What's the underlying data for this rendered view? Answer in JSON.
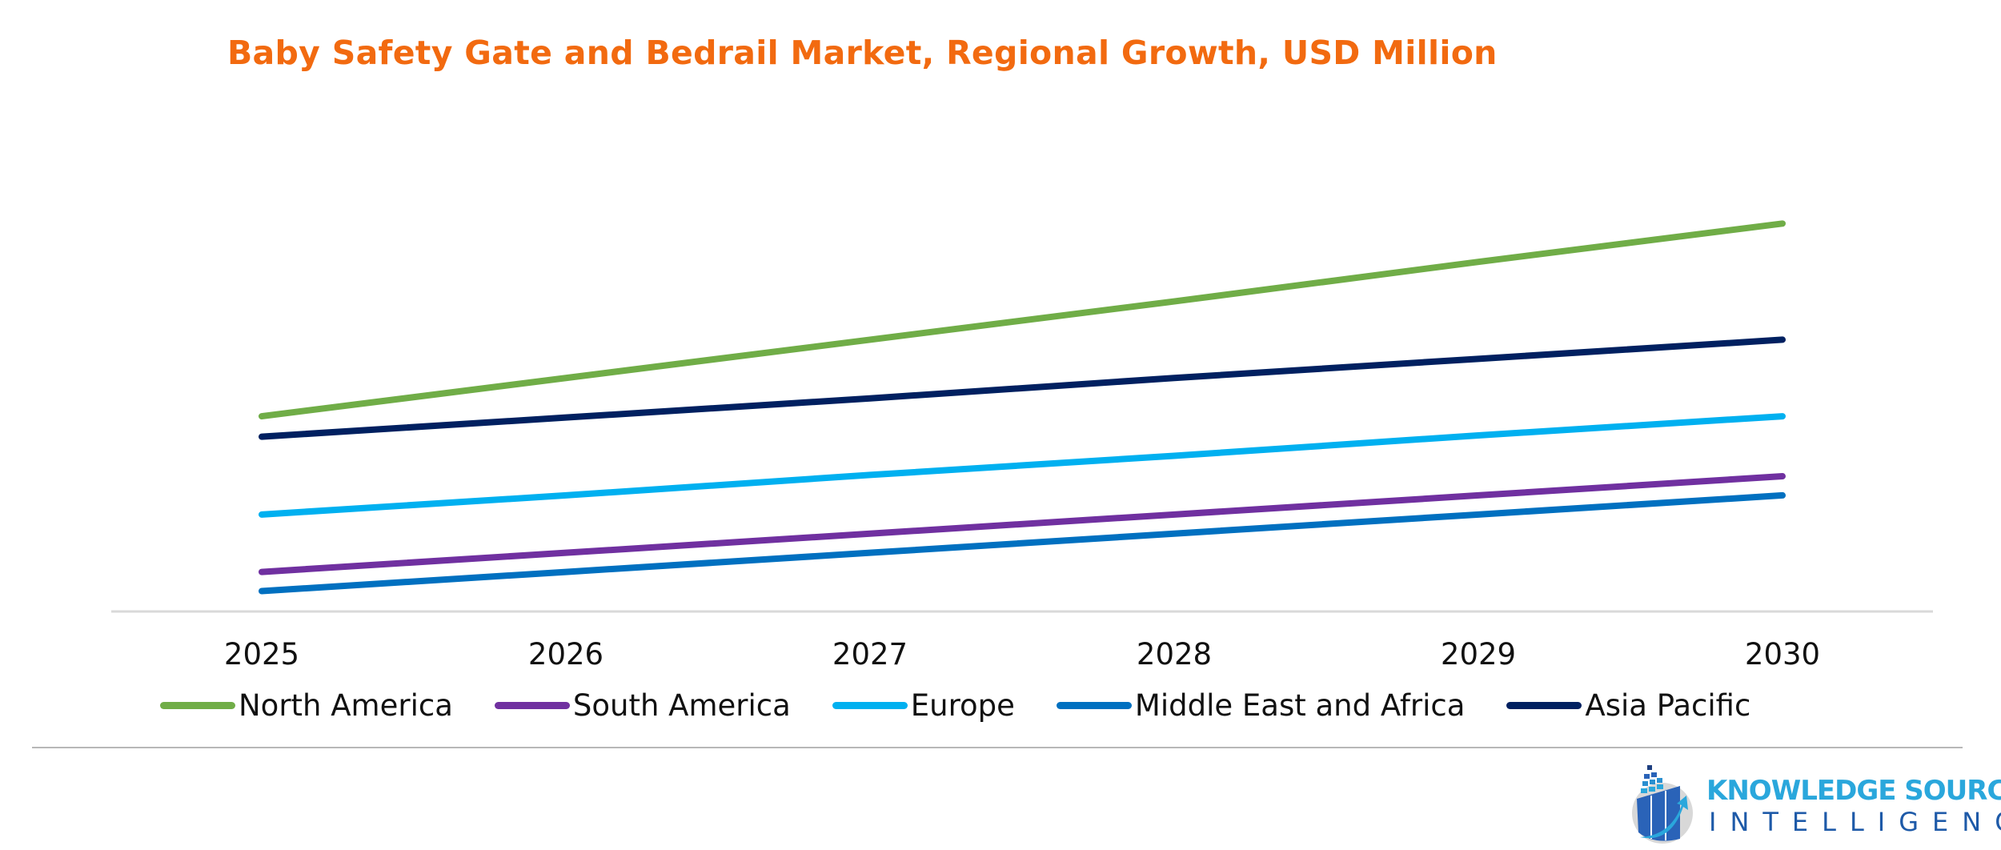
{
  "chart_data": {
    "type": "line",
    "title": "Baby Safety Gate and Bedrail Market, Regional Growth, USD Million",
    "xlabel": "",
    "ylabel": "",
    "categories": [
      "2025",
      "2026",
      "2027",
      "2028",
      "2029",
      "2030"
    ],
    "ylim": [
      0,
      350
    ],
    "y_axis_visible": false,
    "grid": false,
    "legend_position": "bottom",
    "series": [
      {
        "name": "North America",
        "color": "#70ad47",
        "values": [
          153,
          183,
          213,
          243,
          274,
          304
        ]
      },
      {
        "name": "South America",
        "color": "#7030a0",
        "values": [
          31,
          46,
          61,
          76,
          91,
          106
        ]
      },
      {
        "name": "Europe",
        "color": "#00b0f0",
        "values": [
          76,
          91,
          107,
          122,
          138,
          153
        ]
      },
      {
        "name": "Middle East and Africa",
        "color": "#0070c0",
        "values": [
          16,
          31,
          46,
          61,
          76,
          91
        ]
      },
      {
        "name": "Asia Pacific",
        "color": "#002060",
        "values": [
          137,
          152,
          167,
          183,
          198,
          213
        ]
      }
    ]
  },
  "logo": {
    "line1": "KNOWLEDGE SOURCING",
    "line2": "INTELLIGENCE"
  }
}
